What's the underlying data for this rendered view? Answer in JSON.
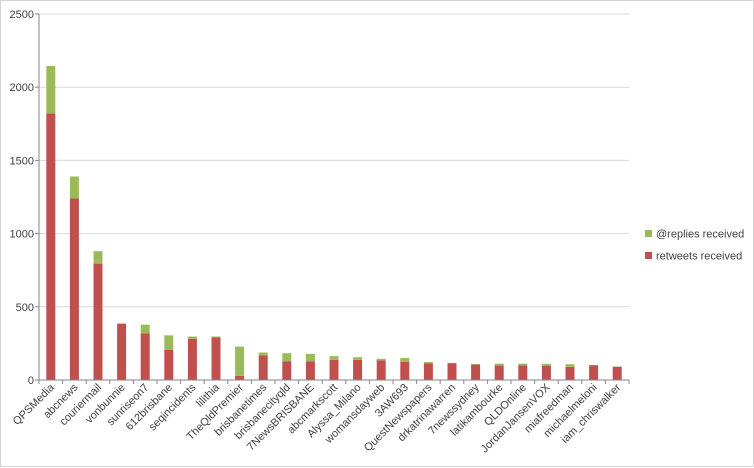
{
  "chart_data": {
    "type": "bar",
    "stacked": true,
    "categories": [
      "QPSMedia",
      "abcnews",
      "couriermail",
      "vonbunnie",
      "sunriseon7",
      "612brisbane",
      "seqincidents",
      "lilithia",
      "TheQldPremier",
      "brisbanetimes",
      "brisbanecityqld",
      "7NewsBRISBANE",
      "abcmarkscott",
      "Alyssa_Milano",
      "womansdayweb",
      "3AW693",
      "QuestNewspapers",
      "drkatrinawarren",
      "7newssydney",
      "latikambourke",
      "QLDOnline",
      "JordanJansenVOX",
      "miafreedman",
      "michaelmeloni",
      "iam_chriswalker"
    ],
    "series": [
      {
        "name": "retweets received",
        "color": "#c0504d",
        "values": [
          1820,
          1240,
          795,
          385,
          318,
          205,
          282,
          292,
          28,
          168,
          128,
          128,
          138,
          138,
          135,
          125,
          113,
          115,
          105,
          100,
          100,
          98,
          90,
          100,
          90
        ]
      },
      {
        "name": "@replies received",
        "color": "#9bbb59",
        "values": [
          325,
          150,
          85,
          0,
          60,
          100,
          15,
          5,
          200,
          20,
          55,
          50,
          25,
          18,
          10,
          25,
          10,
          2,
          5,
          12,
          12,
          12,
          18,
          3,
          3
        ]
      }
    ],
    "y_ticks": [
      "0",
      "500",
      "1000",
      "1500",
      "2000",
      "2500"
    ],
    "ylim": [
      0,
      2500
    ],
    "grid": true,
    "legend_position": "right",
    "gridline_color": "#d9d9d9",
    "axis_color": "#868686"
  }
}
